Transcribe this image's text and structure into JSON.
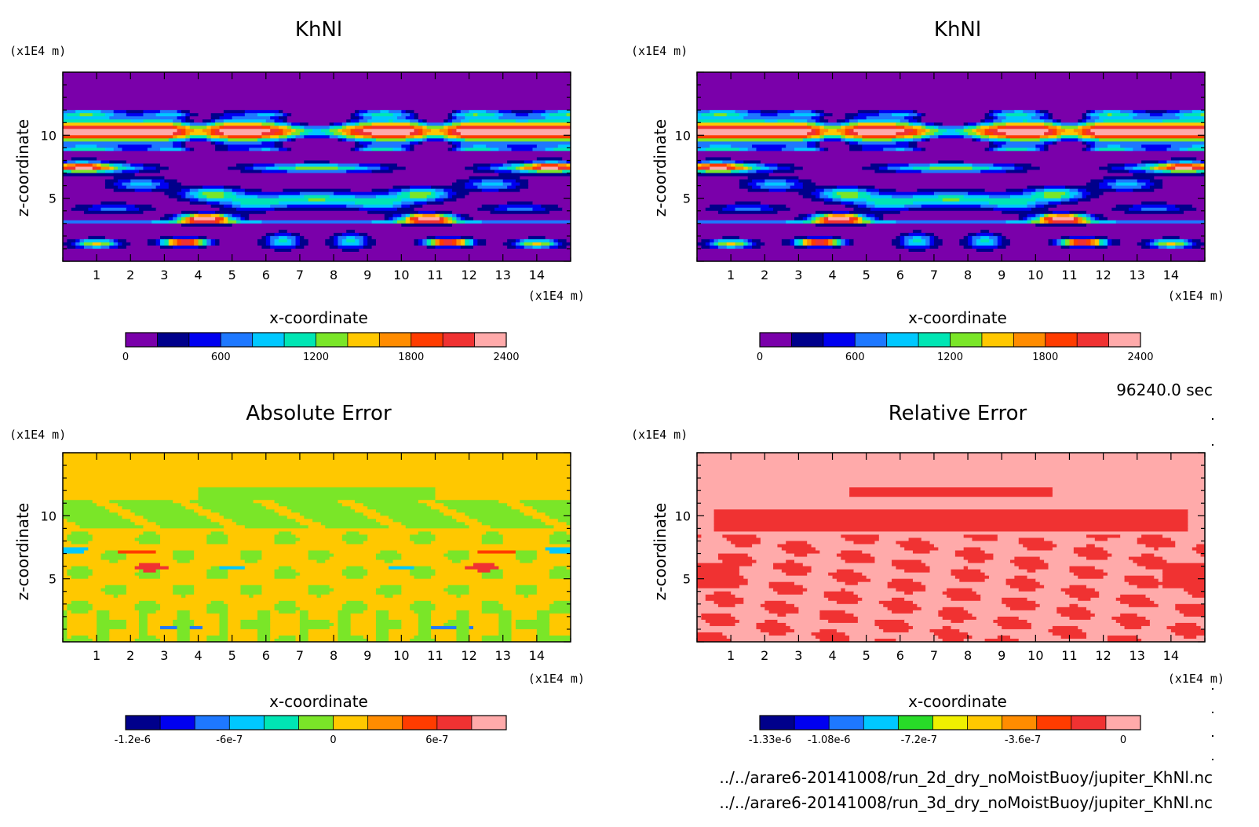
{
  "chart_data": [
    {
      "type": "heatmap",
      "title": "KhNl",
      "xlabel": "x-coordinate",
      "ylabel": "z-coordinate",
      "x_unit": "(x1E4 m)",
      "y_unit": "(x1E4 m)",
      "xlim": [
        0,
        15
      ],
      "ylim": [
        0,
        15
      ],
      "x_ticks": [
        "1",
        "2",
        "3",
        "4",
        "5",
        "6",
        "7",
        "8",
        "9",
        "10",
        "11",
        "12",
        "13",
        "14"
      ],
      "y_ticks": [
        "5",
        "10"
      ],
      "colorbar": {
        "colors": [
          "#7a00aa",
          "#00008b",
          "#0000f0",
          "#1e78ff",
          "#00c8ff",
          "#00e6b4",
          "#7ae628",
          "#ffc800",
          "#ff8c00",
          "#ff3c00",
          "#f03232",
          "#ffaaaa"
        ],
        "tick_labels": [
          "0",
          "600",
          "1200",
          "1800",
          "2400"
        ]
      },
      "pattern": "field"
    },
    {
      "type": "heatmap",
      "title": "KhNl",
      "xlabel": "x-coordinate",
      "ylabel": "z-coordinate",
      "x_unit": "(x1E4 m)",
      "y_unit": "(x1E4 m)",
      "xlim": [
        0,
        15
      ],
      "ylim": [
        0,
        15
      ],
      "x_ticks": [
        "1",
        "2",
        "3",
        "4",
        "5",
        "6",
        "7",
        "8",
        "9",
        "10",
        "11",
        "12",
        "13",
        "14"
      ],
      "y_ticks": [
        "5",
        "10"
      ],
      "colorbar": {
        "colors": [
          "#7a00aa",
          "#00008b",
          "#0000f0",
          "#1e78ff",
          "#00c8ff",
          "#00e6b4",
          "#7ae628",
          "#ffc800",
          "#ff8c00",
          "#ff3c00",
          "#f03232",
          "#ffaaaa"
        ],
        "tick_labels": [
          "0",
          "600",
          "1200",
          "1800",
          "2400"
        ]
      },
      "pattern": "field"
    },
    {
      "type": "heatmap",
      "title": "Absolute Error",
      "xlabel": "x-coordinate",
      "ylabel": "z-coordinate",
      "x_unit": "(x1E4 m)",
      "y_unit": "(x1E4 m)",
      "xlim": [
        0,
        15
      ],
      "ylim": [
        0,
        15
      ],
      "x_ticks": [
        "1",
        "2",
        "3",
        "4",
        "5",
        "6",
        "7",
        "8",
        "9",
        "10",
        "11",
        "12",
        "13",
        "14"
      ],
      "y_ticks": [
        "5",
        "10"
      ],
      "colorbar": {
        "colors": [
          "#00008b",
          "#0000f0",
          "#1e78ff",
          "#00c8ff",
          "#00e6b4",
          "#7ae628",
          "#ffc800",
          "#ff8c00",
          "#ff3c00",
          "#f03232",
          "#ffaaaa"
        ],
        "tick_labels": [
          "-1.2e-6",
          "-6e-7",
          "0",
          "6e-7"
        ]
      },
      "pattern": "abs"
    },
    {
      "type": "heatmap",
      "title": "Relative Error",
      "xlabel": "x-coordinate",
      "ylabel": "z-coordinate",
      "x_unit": "(x1E4 m)",
      "y_unit": "(x1E4 m)",
      "xlim": [
        0,
        15
      ],
      "ylim": [
        0,
        15
      ],
      "x_ticks": [
        "1",
        "2",
        "3",
        "4",
        "5",
        "6",
        "7",
        "8",
        "9",
        "10",
        "11",
        "12",
        "13",
        "14"
      ],
      "y_ticks": [
        "5",
        "10"
      ],
      "colorbar": {
        "colors": [
          "#00008b",
          "#0000f0",
          "#1e78ff",
          "#00c8ff",
          "#28dc28",
          "#f0f000",
          "#ffc800",
          "#ff8c00",
          "#ff3c00",
          "#f03232",
          "#ffaaaa"
        ],
        "tick_labels": [
          "-1.33e-6",
          "-1.08e-6",
          "-7.2e-7",
          "-3.6e-7",
          "0"
        ]
      },
      "pattern": "rel"
    }
  ],
  "info": {
    "time": "96240.0 sec",
    "file1": "../../arare6-20141008/run_2d_dry_noMoistBuoy/jupiter_KhNl.nc",
    "file2": "../../arare6-20141008/run_3d_dry_noMoistBuoy/jupiter_KhNl.nc"
  }
}
